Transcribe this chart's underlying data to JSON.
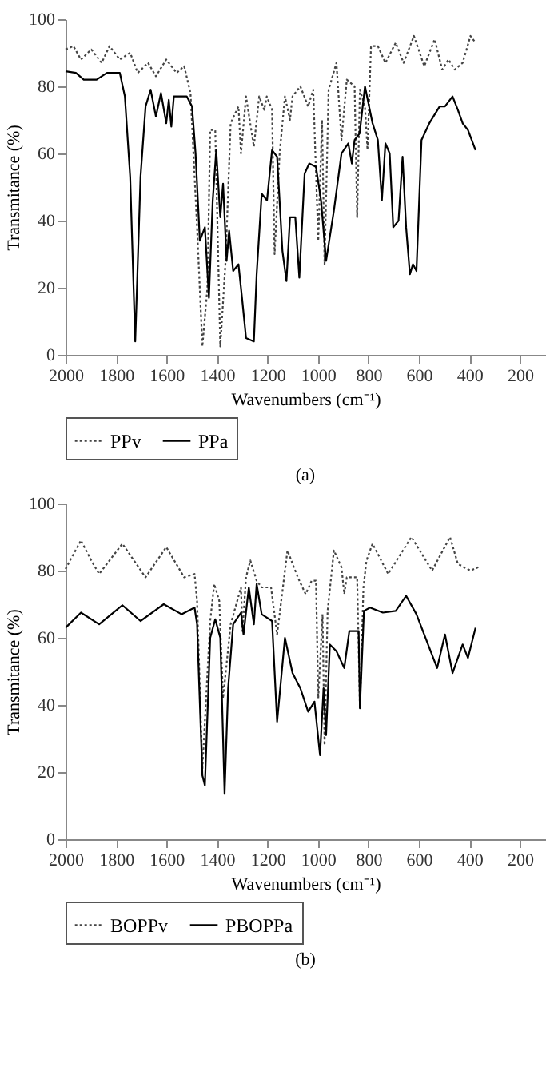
{
  "chart_data": [
    {
      "type": "line",
      "title": "(a)",
      "xlabel": "Wavenumbers (cm⁻¹)",
      "ylabel": "Transmitance (%)",
      "xlim": [
        2000,
        100
      ],
      "xticks": [
        2000,
        1800,
        1600,
        1400,
        1200,
        1000,
        800,
        600,
        400,
        200
      ],
      "ylim": [
        0,
        100
      ],
      "yticks": [
        0,
        20,
        40,
        60,
        80,
        100
      ],
      "grid": false,
      "legend": "bottom",
      "series": [
        {
          "name": "PPv",
          "color": "#444444",
          "line_style": "dotted",
          "x": [
            2000,
            1969,
            1939,
            1898,
            1857,
            1826,
            1785,
            1744,
            1714,
            1673,
            1642,
            1601,
            1560,
            1530,
            1505,
            1479,
            1458,
            1438,
            1427,
            1407,
            1387,
            1366,
            1346,
            1315,
            1305,
            1285,
            1254,
            1233,
            1213,
            1203,
            1182,
            1172,
            1152,
            1131,
            1111,
            1101,
            1070,
            1039,
            1019,
            999,
            984,
            974,
            958,
            927,
            907,
            886,
            855,
            845,
            834,
            814,
            804,
            790,
            763,
            733,
            692,
            661,
            620,
            579,
            538,
            508,
            483,
            458,
            427,
            396,
            376
          ],
          "values": [
            91,
            92,
            88,
            91,
            87,
            92,
            88,
            90,
            84,
            87,
            83,
            88,
            84,
            86,
            78,
            38,
            2.5,
            20,
            67,
            67,
            2.5,
            28,
            69,
            74,
            60,
            77,
            62,
            77,
            73,
            77,
            73,
            30,
            60,
            77,
            70,
            77,
            80,
            74,
            79,
            34,
            70,
            27,
            79,
            87,
            64,
            82,
            80,
            41,
            79,
            74,
            61,
            92,
            92,
            87,
            93,
            87,
            95,
            86,
            94,
            85,
            88,
            85,
            87,
            95,
            93
          ]
        },
        {
          "name": "PPa",
          "color": "#000000",
          "line_style": "solid",
          "x": [
            2000,
            1959,
            1928,
            1877,
            1836,
            1785,
            1765,
            1744,
            1724,
            1703,
            1683,
            1663,
            1642,
            1622,
            1601,
            1591,
            1581,
            1571,
            1520,
            1499,
            1485,
            1468,
            1448,
            1432,
            1417,
            1403,
            1387,
            1376,
            1362,
            1352,
            1336,
            1315,
            1301,
            1285,
            1254,
            1243,
            1223,
            1202,
            1182,
            1162,
            1141,
            1125,
            1111,
            1090,
            1074,
            1053,
            1035,
            1008,
            988,
            968,
            937,
            907,
            880,
            866,
            855,
            835,
            814,
            784,
            763,
            747,
            733,
            716,
            702,
            681,
            665,
            651,
            636,
            624,
            610,
            590,
            559,
            518,
            497,
            467,
            446,
            427,
            406,
            376
          ],
          "values": [
            84.5,
            84,
            82,
            82,
            84,
            84,
            77,
            53,
            4,
            53,
            74,
            79,
            71,
            78,
            69,
            76,
            68,
            77,
            77,
            74,
            60,
            34,
            38,
            17,
            46,
            61,
            41,
            51,
            28,
            37,
            25,
            27,
            17,
            5,
            4,
            24,
            48,
            46,
            61,
            59,
            31,
            22,
            41,
            41,
            23,
            54,
            57,
            56,
            46,
            28,
            43,
            60,
            63,
            57,
            64,
            66,
            80,
            69,
            64,
            46,
            63,
            60,
            38,
            40,
            59,
            38,
            24,
            27,
            25,
            64,
            69,
            74,
            74,
            77,
            73,
            69,
            67,
            61
          ]
        }
      ]
    },
    {
      "type": "line",
      "title": "(b)",
      "xlabel": "Wavenumbers (cm⁻¹)",
      "ylabel": "Transmitance (%)",
      "xlim": [
        2000,
        100
      ],
      "xticks": [
        2000,
        1800,
        1600,
        1400,
        1200,
        1000,
        800,
        600,
        400,
        200
      ],
      "ylim": [
        0,
        100
      ],
      "yticks": [
        0,
        20,
        40,
        60,
        80,
        100
      ],
      "grid": false,
      "legend": "bottom",
      "series": [
        {
          "name": "BOPPv",
          "color": "#444444",
          "line_style": "dotted",
          "x": [
            2000,
            1939,
            1898,
            1867,
            1775,
            1683,
            1601,
            1530,
            1489,
            1479,
            1458,
            1427,
            1411,
            1391,
            1376,
            1346,
            1305,
            1299,
            1285,
            1268,
            1243,
            1223,
            1186,
            1162,
            1121,
            1080,
            1049,
            1025,
            1008,
            999,
            982,
            974,
            962,
            937,
            907,
            896,
            886,
            845,
            834,
            820,
            808,
            784,
            722,
            630,
            548,
            477,
            446,
            396,
            365
          ],
          "values": [
            80.5,
            89,
            83,
            79,
            88,
            78,
            87,
            78,
            79,
            71,
            21,
            65,
            76,
            71,
            42,
            64,
            75,
            62,
            78,
            83,
            77,
            75,
            75,
            61,
            86,
            78,
            73,
            77,
            77,
            42,
            67,
            28,
            68,
            86,
            81,
            73,
            78,
            78,
            39,
            75,
            83,
            88,
            79,
            90,
            80,
            90,
            82,
            80,
            81
          ]
        },
        {
          "name": "PBOPPa",
          "color": "#000000",
          "line_style": "solid",
          "x": [
            2000,
            1939,
            1867,
            1775,
            1703,
            1611,
            1540,
            1489,
            1479,
            1458,
            1448,
            1427,
            1407,
            1387,
            1370,
            1356,
            1336,
            1305,
            1295,
            1274,
            1254,
            1243,
            1223,
            1182,
            1162,
            1131,
            1101,
            1070,
            1039,
            1014,
            992,
            978,
            968,
            953,
            927,
            896,
            876,
            839,
            834,
            818,
            794,
            743,
            692,
            651,
            610,
            528,
            497,
            467,
            427,
            406,
            376
          ],
          "values": [
            63,
            67.5,
            64,
            69.7,
            65,
            70,
            67,
            69,
            64,
            19,
            16,
            60,
            65.5,
            60,
            13.5,
            45,
            64,
            67.5,
            61,
            75,
            64,
            76,
            67,
            65,
            35,
            60,
            49.5,
            45,
            38,
            41,
            25,
            45,
            31,
            58,
            56,
            51,
            62,
            62,
            39,
            68,
            69,
            67.5,
            68,
            72.5,
            67,
            51,
            61,
            49.5,
            58,
            54,
            63
          ]
        }
      ]
    }
  ]
}
